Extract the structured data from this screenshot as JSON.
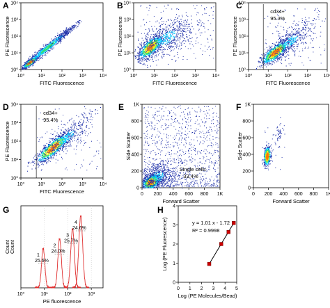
{
  "chart_data": [
    {
      "panel": "A",
      "type": "scatter",
      "xlabel": "FITC Fluorescence",
      "ylabel": "PE Fluorescence",
      "x_ticks": [
        "10⁰",
        "10¹",
        "10²",
        "10³",
        "10⁴"
      ],
      "y_ticks": [
        "10⁰",
        "10¹",
        "10²",
        "10³",
        "10⁴"
      ],
      "xlim": [
        0,
        4
      ],
      "ylim": [
        0,
        4
      ],
      "scale": "log",
      "density": "diagonal population from (0.2,0.2) to about (2.5,2.6), densest near (0.4,0.4)"
    },
    {
      "panel": "B",
      "type": "scatter",
      "xlabel": "FITC Fluorescence",
      "ylabel": "PE Fluorescence",
      "x_ticks": [
        "10⁰",
        "10¹",
        "10²",
        "10³",
        "10⁴"
      ],
      "y_ticks": [
        "10⁰",
        "10¹",
        "10²",
        "10³",
        "10⁴"
      ],
      "xlim": [
        0,
        4
      ],
      "ylim": [
        0,
        4
      ],
      "scale": "log",
      "density": "broad population centered near (0.8,1.3), diffuse toward upper right"
    },
    {
      "panel": "C",
      "type": "scatter",
      "xlabel": "FITC Fluorescence",
      "ylabel": "PE Fluorescence",
      "x_ticks": [
        "10⁰",
        "10¹",
        "10²",
        "10³",
        "10⁴"
      ],
      "y_ticks": [
        "10⁰",
        "10¹",
        "10²",
        "10³",
        "10⁴"
      ],
      "xlim": [
        0,
        4
      ],
      "ylim": [
        0,
        4
      ],
      "scale": "log",
      "gate": {
        "x": 0.75,
        "label": "cd34+",
        "value": "95.3%"
      },
      "density": "diagonal population centered near (1.3,1.1)"
    },
    {
      "panel": "D",
      "type": "scatter",
      "xlabel": "FITC Fluorescence",
      "ylabel": "PE Fluorescence",
      "x_ticks": [
        "10⁰",
        "10¹",
        "10²",
        "10³",
        "10⁴"
      ],
      "y_ticks": [
        "10⁰",
        "10¹",
        "10²",
        "10³",
        "10⁴"
      ],
      "xlim": [
        0,
        4
      ],
      "ylim": [
        0,
        4
      ],
      "scale": "log",
      "gate": {
        "x": 0.75,
        "label": "cd34+",
        "value": "95.4%"
      },
      "density": "diagonal population centered near (1.5,1.6)"
    },
    {
      "panel": "E",
      "type": "scatter",
      "xlabel": "Forward Scatter",
      "ylabel": "Side Scatter",
      "x_ticks": [
        "0",
        "200",
        "400",
        "600",
        "800",
        "1K"
      ],
      "y_ticks": [
        "0",
        "200",
        "400",
        "600",
        "800",
        "1K"
      ],
      "xlim": [
        0,
        1000
      ],
      "ylim": [
        0,
        1000
      ],
      "gate": {
        "label": "Single cells",
        "value": "33.4%"
      },
      "density": "dense cluster near (100,60), sparse scatter over whole plot"
    },
    {
      "panel": "F",
      "type": "scatter",
      "xlabel": "Forward Scatter",
      "ylabel": "Side Scatter",
      "x_ticks": [
        "0",
        "200",
        "400",
        "600",
        "800",
        "1K"
      ],
      "y_ticks": [
        "0",
        "200",
        "400",
        "600",
        "800",
        "1K"
      ],
      "xlim": [
        0,
        1000
      ],
      "ylim": [
        0,
        1000
      ],
      "density": "tight cluster near (180,380) with small tail to (350,700)"
    },
    {
      "panel": "G",
      "type": "line",
      "xlabel": "PE fluorescence",
      "ylabel": "Count",
      "x_ticks": [
        "10⁰",
        "10¹",
        "10²",
        "10³"
      ],
      "xlim": [
        0,
        3.5
      ],
      "peaks": [
        {
          "label": "1",
          "value": "25.6%",
          "x": 0.95,
          "height": 0.55
        },
        {
          "label": "2",
          "value": "24.0%",
          "x": 1.65,
          "height": 0.68
        },
        {
          "label": "3",
          "value": "25.7%",
          "x": 2.2,
          "height": 0.82
        },
        {
          "label": "4",
          "value": "24.6%",
          "x": 2.55,
          "height": 1.0
        }
      ]
    },
    {
      "panel": "H",
      "type": "scatter",
      "xlabel": "Log (PE Molecules/Bead)",
      "ylabel": "Log (PE Fluorescence)",
      "xlim": [
        0,
        5
      ],
      "ylim": [
        0,
        4
      ],
      "x_ticks": [
        "0",
        "1",
        "2",
        "3",
        "4",
        "5"
      ],
      "y_ticks": [
        "0",
        "1",
        "2",
        "3",
        "4"
      ],
      "equation": "y = 1.01 x - 1.72",
      "r2": "R² = 0.9998",
      "x": [
        2.65,
        3.68,
        4.3,
        4.75
      ],
      "y": [
        0.96,
        2.0,
        2.63,
        3.1
      ]
    }
  ],
  "colors": {
    "dots": "#2233aa",
    "density": [
      "#1e3cff",
      "#00c8ff",
      "#33e070",
      "#e8f020",
      "#ff7a00"
    ],
    "histogram": "#e03030",
    "fit_line": "#000000",
    "marker": "#cc0000"
  }
}
